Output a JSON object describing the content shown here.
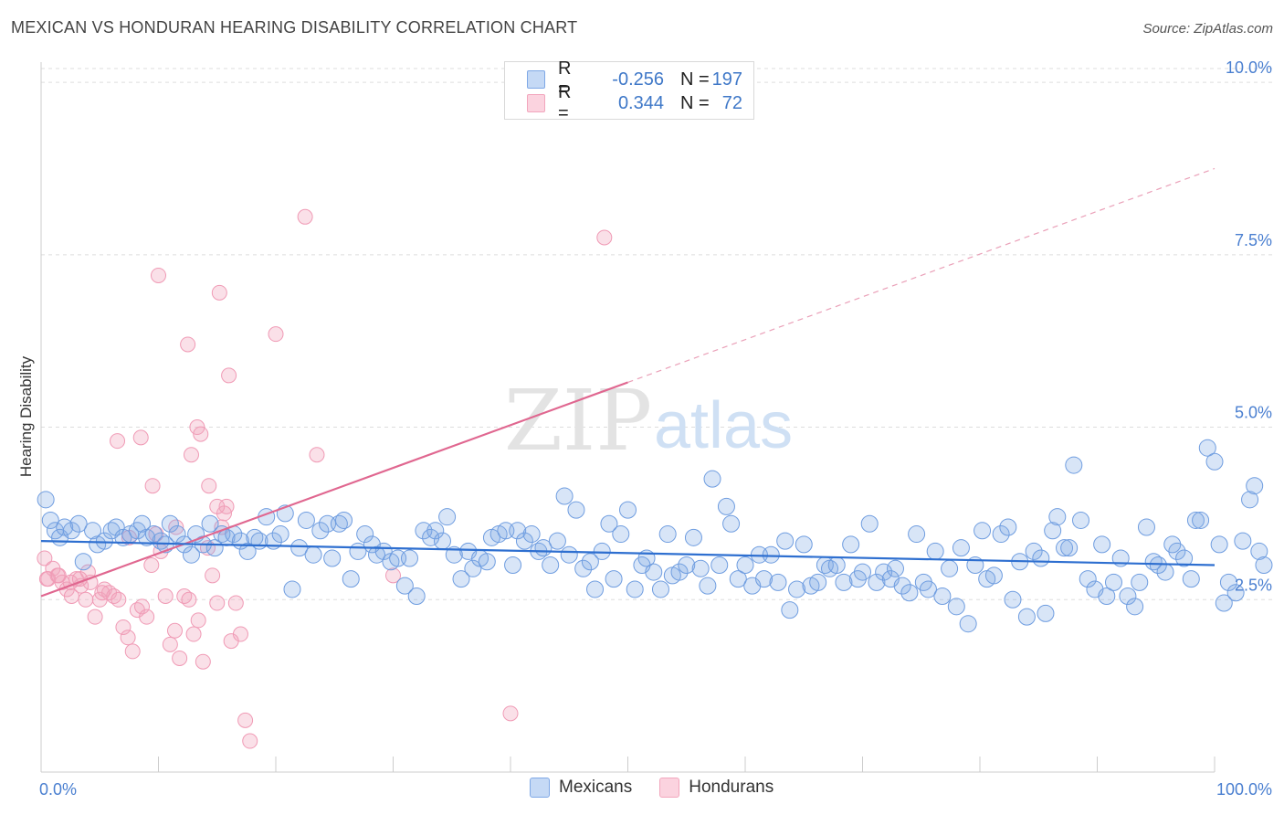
{
  "header": {
    "title": "MEXICAN VS HONDURAN HEARING DISABILITY CORRELATION CHART",
    "source": "Source: ZipAtlas.com"
  },
  "legend_top": {
    "rows": [
      {
        "r_label": "R =",
        "r_value": "-0.256",
        "n_label": "N =",
        "n_value": "197",
        "color": "#7fa8e6"
      },
      {
        "r_label": "R =",
        "r_value": "0.344",
        "n_label": "N =",
        "n_value": "72",
        "color": "#f2a6bd"
      }
    ]
  },
  "legend_bottom": {
    "items": [
      {
        "label": "Mexicans",
        "color": "#7fa8e6"
      },
      {
        "label": "Hondurans",
        "color": "#f2a6bd"
      }
    ]
  },
  "watermark": {
    "zip": "ZIP",
    "atlas": "atlas"
  },
  "chart_data": {
    "type": "scatter",
    "title": "MEXICAN VS HONDURAN HEARING DISABILITY CORRELATION CHART",
    "ylabel": "Hearing Disability",
    "xlabel": "",
    "xlim": [
      0,
      100
    ],
    "ylim": [
      0,
      10.2
    ],
    "x_tick_labels": [
      "0.0%",
      "100.0%"
    ],
    "y_ticks": [
      2.5,
      5.0,
      7.5,
      10.0
    ],
    "y_tick_labels": [
      "2.5%",
      "5.0%",
      "7.5%",
      "10.0%"
    ],
    "grid": "horizontal dashed",
    "series": [
      {
        "name": "Mexicans",
        "color": "#7fa8e6",
        "line_color": "#2e6fd0",
        "r": -0.256,
        "n": 197,
        "trend": {
          "x": [
            0,
            100
          ],
          "y": [
            3.35,
            3.0
          ],
          "dashed_from": null
        },
        "points": [
          [
            0.4,
            3.95
          ],
          [
            0.8,
            3.65
          ],
          [
            1.2,
            3.5
          ],
          [
            1.6,
            3.4
          ],
          [
            2.0,
            3.55
          ],
          [
            2.6,
            3.5
          ],
          [
            3.2,
            3.6
          ],
          [
            3.6,
            3.05
          ],
          [
            4.4,
            3.5
          ],
          [
            4.8,
            3.3
          ],
          [
            5.4,
            3.35
          ],
          [
            6.0,
            3.5
          ],
          [
            6.4,
            3.55
          ],
          [
            7.0,
            3.4
          ],
          [
            7.6,
            3.45
          ],
          [
            8.2,
            3.5
          ],
          [
            8.6,
            3.6
          ],
          [
            9.0,
            3.4
          ],
          [
            9.6,
            3.45
          ],
          [
            10.2,
            3.35
          ],
          [
            10.6,
            3.3
          ],
          [
            11.0,
            3.6
          ],
          [
            11.6,
            3.45
          ],
          [
            12.2,
            3.3
          ],
          [
            12.8,
            3.15
          ],
          [
            13.2,
            3.45
          ],
          [
            13.8,
            3.3
          ],
          [
            14.4,
            3.6
          ],
          [
            14.8,
            3.25
          ],
          [
            15.4,
            3.45
          ],
          [
            15.8,
            3.4
          ],
          [
            16.4,
            3.45
          ],
          [
            17.0,
            3.35
          ],
          [
            17.6,
            3.2
          ],
          [
            18.2,
            3.4
          ],
          [
            18.6,
            3.35
          ],
          [
            19.2,
            3.7
          ],
          [
            19.8,
            3.35
          ],
          [
            20.4,
            3.45
          ],
          [
            20.8,
            3.75
          ],
          [
            21.4,
            2.65
          ],
          [
            22.0,
            3.25
          ],
          [
            22.6,
            3.65
          ],
          [
            23.2,
            3.15
          ],
          [
            23.8,
            3.5
          ],
          [
            24.4,
            3.6
          ],
          [
            24.8,
            3.1
          ],
          [
            25.4,
            3.6
          ],
          [
            25.8,
            3.65
          ],
          [
            26.4,
            2.8
          ],
          [
            27.0,
            3.2
          ],
          [
            27.6,
            3.45
          ],
          [
            28.2,
            3.3
          ],
          [
            28.6,
            3.15
          ],
          [
            29.2,
            3.2
          ],
          [
            29.8,
            3.05
          ],
          [
            30.4,
            3.1
          ],
          [
            31.0,
            2.7
          ],
          [
            31.4,
            3.1
          ],
          [
            32.0,
            2.55
          ],
          [
            32.6,
            3.5
          ],
          [
            33.2,
            3.4
          ],
          [
            33.6,
            3.5
          ],
          [
            34.2,
            3.35
          ],
          [
            34.6,
            3.7
          ],
          [
            35.2,
            3.15
          ],
          [
            35.8,
            2.8
          ],
          [
            36.4,
            3.2
          ],
          [
            36.8,
            2.95
          ],
          [
            37.4,
            3.1
          ],
          [
            38.0,
            3.05
          ],
          [
            38.4,
            3.4
          ],
          [
            39.0,
            3.45
          ],
          [
            39.6,
            3.5
          ],
          [
            40.2,
            3.0
          ],
          [
            40.6,
            3.5
          ],
          [
            41.2,
            3.35
          ],
          [
            41.8,
            3.45
          ],
          [
            42.4,
            3.2
          ],
          [
            42.8,
            3.25
          ],
          [
            43.4,
            3.0
          ],
          [
            44.0,
            3.35
          ],
          [
            44.6,
            4.0
          ],
          [
            45.0,
            3.15
          ],
          [
            45.6,
            3.8
          ],
          [
            46.2,
            2.95
          ],
          [
            46.8,
            3.05
          ],
          [
            47.2,
            2.65
          ],
          [
            47.8,
            3.2
          ],
          [
            48.4,
            3.6
          ],
          [
            48.8,
            2.8
          ],
          [
            49.4,
            3.45
          ],
          [
            50.0,
            3.8
          ],
          [
            50.6,
            2.65
          ],
          [
            51.2,
            3.0
          ],
          [
            51.6,
            3.1
          ],
          [
            52.2,
            2.9
          ],
          [
            52.8,
            2.65
          ],
          [
            53.4,
            3.45
          ],
          [
            53.8,
            2.85
          ],
          [
            54.4,
            2.9
          ],
          [
            55.0,
            3.0
          ],
          [
            55.6,
            3.4
          ],
          [
            56.2,
            2.95
          ],
          [
            56.8,
            2.7
          ],
          [
            57.2,
            4.25
          ],
          [
            57.8,
            3.0
          ],
          [
            58.4,
            3.85
          ],
          [
            58.8,
            3.6
          ],
          [
            59.4,
            2.8
          ],
          [
            60.0,
            3.0
          ],
          [
            60.6,
            2.7
          ],
          [
            61.2,
            3.15
          ],
          [
            61.6,
            2.8
          ],
          [
            62.2,
            3.15
          ],
          [
            62.8,
            2.75
          ],
          [
            63.4,
            3.35
          ],
          [
            63.8,
            2.35
          ],
          [
            64.4,
            2.65
          ],
          [
            65.0,
            3.3
          ],
          [
            65.6,
            2.7
          ],
          [
            66.2,
            2.75
          ],
          [
            66.8,
            3.0
          ],
          [
            67.2,
            2.95
          ],
          [
            67.8,
            3.0
          ],
          [
            68.4,
            2.75
          ],
          [
            69.0,
            3.3
          ],
          [
            69.6,
            2.8
          ],
          [
            70.0,
            2.9
          ],
          [
            70.6,
            3.6
          ],
          [
            71.2,
            2.75
          ],
          [
            71.8,
            2.9
          ],
          [
            72.4,
            2.8
          ],
          [
            72.8,
            2.95
          ],
          [
            73.4,
            2.7
          ],
          [
            74.0,
            2.6
          ],
          [
            74.6,
            3.45
          ],
          [
            75.2,
            2.75
          ],
          [
            75.6,
            2.65
          ],
          [
            76.2,
            3.2
          ],
          [
            76.8,
            2.55
          ],
          [
            77.4,
            2.95
          ],
          [
            78.0,
            2.4
          ],
          [
            78.4,
            3.25
          ],
          [
            79.0,
            2.15
          ],
          [
            79.6,
            3.0
          ],
          [
            80.2,
            3.5
          ],
          [
            80.6,
            2.8
          ],
          [
            81.2,
            2.85
          ],
          [
            81.8,
            3.45
          ],
          [
            82.4,
            3.55
          ],
          [
            82.8,
            2.5
          ],
          [
            83.4,
            3.05
          ],
          [
            84.0,
            2.25
          ],
          [
            84.6,
            3.2
          ],
          [
            85.2,
            3.1
          ],
          [
            85.6,
            2.3
          ],
          [
            86.2,
            3.5
          ],
          [
            86.6,
            3.7
          ],
          [
            87.2,
            3.25
          ],
          [
            87.6,
            3.25
          ],
          [
            88.0,
            4.45
          ],
          [
            88.6,
            3.65
          ],
          [
            89.2,
            2.8
          ],
          [
            89.8,
            2.65
          ],
          [
            90.4,
            3.3
          ],
          [
            90.8,
            2.55
          ],
          [
            91.4,
            2.75
          ],
          [
            92.0,
            3.1
          ],
          [
            92.6,
            2.55
          ],
          [
            93.2,
            2.4
          ],
          [
            93.6,
            2.75
          ],
          [
            94.2,
            3.55
          ],
          [
            94.8,
            3.05
          ],
          [
            95.2,
            3.0
          ],
          [
            95.8,
            2.9
          ],
          [
            96.4,
            3.3
          ],
          [
            96.8,
            3.2
          ],
          [
            97.4,
            3.1
          ],
          [
            98.0,
            2.8
          ],
          [
            98.4,
            3.65
          ],
          [
            98.8,
            3.65
          ],
          [
            99.4,
            4.7
          ],
          [
            100.0,
            4.5
          ],
          [
            100.4,
            3.3
          ],
          [
            100.8,
            2.45
          ],
          [
            101.2,
            2.75
          ],
          [
            101.8,
            2.6
          ],
          [
            102.4,
            3.35
          ],
          [
            103.0,
            3.95
          ],
          [
            103.4,
            4.15
          ],
          [
            103.8,
            3.2
          ],
          [
            104.2,
            3.0
          ]
        ]
      },
      {
        "name": "Hondurans",
        "color": "#f2a6bd",
        "line_color": "#e06790",
        "r": 0.344,
        "n": 72,
        "trend": {
          "x": [
            0,
            100
          ],
          "y": [
            2.55,
            8.75
          ],
          "dashed_from": 50
        },
        "points": [
          [
            0.3,
            3.1
          ],
          [
            0.6,
            2.8
          ],
          [
            1.0,
            2.95
          ],
          [
            1.4,
            2.85
          ],
          [
            1.8,
            2.75
          ],
          [
            2.2,
            2.65
          ],
          [
            2.6,
            2.55
          ],
          [
            3.0,
            2.8
          ],
          [
            3.4,
            2.7
          ],
          [
            3.8,
            2.5
          ],
          [
            4.2,
            2.75
          ],
          [
            4.6,
            2.25
          ],
          [
            5.0,
            2.5
          ],
          [
            5.4,
            2.65
          ],
          [
            5.8,
            2.6
          ],
          [
            6.2,
            2.55
          ],
          [
            6.6,
            2.5
          ],
          [
            7.0,
            2.1
          ],
          [
            7.4,
            1.95
          ],
          [
            7.8,
            1.75
          ],
          [
            8.2,
            2.35
          ],
          [
            8.6,
            2.4
          ],
          [
            9.0,
            2.25
          ],
          [
            9.4,
            3.0
          ],
          [
            9.8,
            3.45
          ],
          [
            10.2,
            3.2
          ],
          [
            10.6,
            2.55
          ],
          [
            11.0,
            1.85
          ],
          [
            11.4,
            2.05
          ],
          [
            11.8,
            1.65
          ],
          [
            12.2,
            2.55
          ],
          [
            12.6,
            2.5
          ],
          [
            13.0,
            2.0
          ],
          [
            13.4,
            2.2
          ],
          [
            13.8,
            1.6
          ],
          [
            14.2,
            3.25
          ],
          [
            14.6,
            2.85
          ],
          [
            15.0,
            2.45
          ],
          [
            15.4,
            3.55
          ],
          [
            15.8,
            3.85
          ],
          [
            16.2,
            1.9
          ],
          [
            16.6,
            2.45
          ],
          [
            17.0,
            2.0
          ],
          [
            17.4,
            0.75
          ],
          [
            17.8,
            0.45
          ],
          [
            0.5,
            2.8
          ],
          [
            1.5,
            2.85
          ],
          [
            2.5,
            2.75
          ],
          [
            6.5,
            4.8
          ],
          [
            8.5,
            4.85
          ],
          [
            9.5,
            4.15
          ],
          [
            10.0,
            7.2
          ],
          [
            12.5,
            6.2
          ],
          [
            12.8,
            4.6
          ],
          [
            13.3,
            5.0
          ],
          [
            13.6,
            4.9
          ],
          [
            14.3,
            4.15
          ],
          [
            15.2,
            6.95
          ],
          [
            15.6,
            3.75
          ],
          [
            15.0,
            3.85
          ],
          [
            16.0,
            5.75
          ],
          [
            20.0,
            6.35
          ],
          [
            22.5,
            8.05
          ],
          [
            23.5,
            4.6
          ],
          [
            30.0,
            2.85
          ],
          [
            40.0,
            0.85
          ],
          [
            48.0,
            7.75
          ],
          [
            11.5,
            3.55
          ],
          [
            7.5,
            3.4
          ],
          [
            4.0,
            2.9
          ],
          [
            3.3,
            2.8
          ],
          [
            5.2,
            2.6
          ]
        ]
      }
    ]
  }
}
